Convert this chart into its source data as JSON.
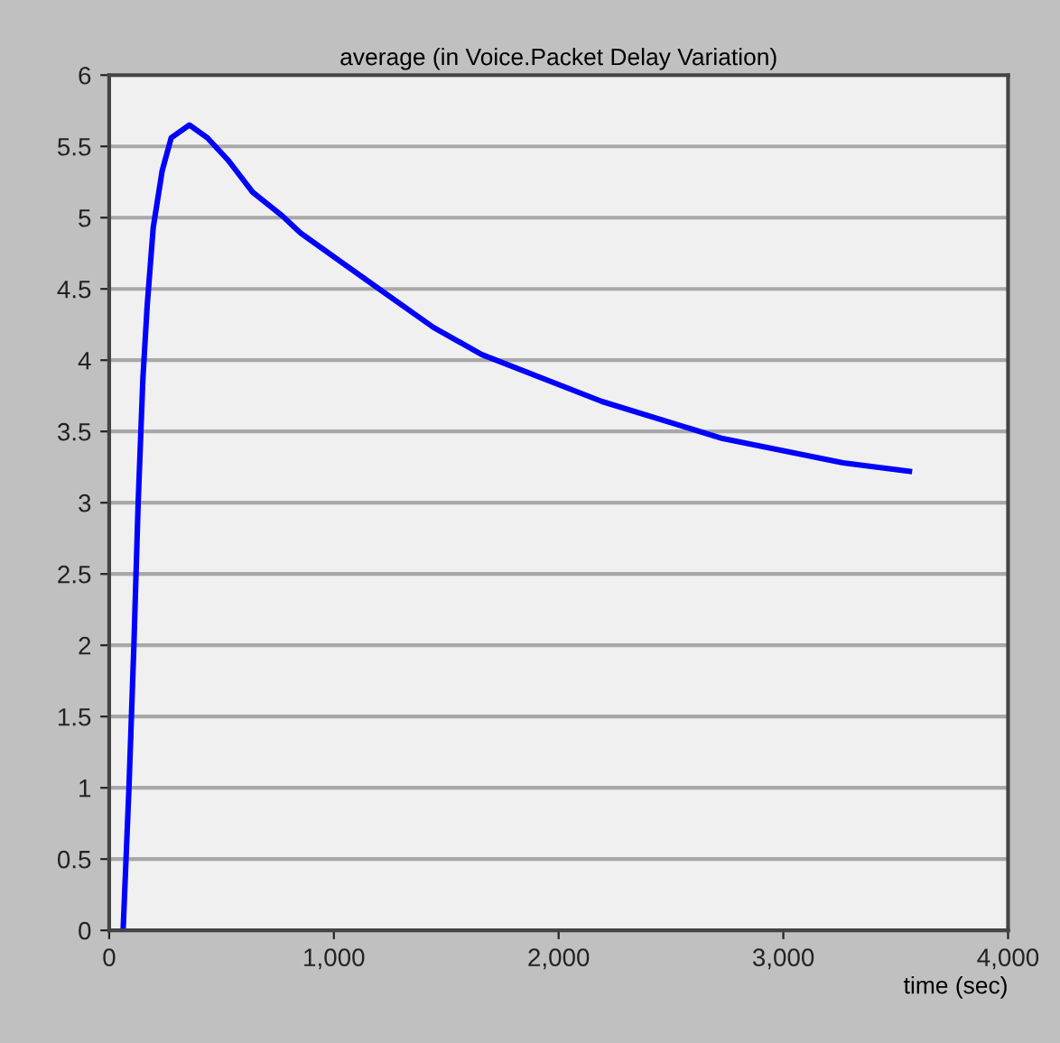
{
  "chart_data": {
    "type": "line",
    "title": "average (in Voice.Packet Delay Variation)",
    "xlabel": "time (sec)",
    "x": [
      62,
      88,
      110,
      129,
      150,
      169,
      196,
      236,
      276,
      357,
      437,
      531,
      638,
      772,
      853,
      1040,
      1228,
      1443,
      1657,
      2193,
      2730,
      3266,
      3561
    ],
    "series": [
      {
        "color": "#0000ff",
        "values": [
          0,
          1.0,
          2.0,
          3.0,
          3.87,
          4.38,
          4.93,
          5.33,
          5.56,
          5.65,
          5.56,
          5.4,
          5.18,
          5.01,
          4.89,
          4.68,
          4.47,
          4.23,
          4.04,
          3.71,
          3.45,
          3.28,
          3.22
        ]
      }
    ],
    "xlim": [
      0,
      4000
    ],
    "xticks": [
      0,
      {
        "value": 1000,
        "label": "1,000"
      },
      {
        "value": 2000,
        "label": "2,000"
      },
      {
        "value": 3000,
        "label": "3,000"
      },
      {
        "value": 4000,
        "label": "4,000"
      }
    ],
    "ylim": [
      0,
      6
    ],
    "yticks": [
      0,
      0.5,
      1,
      1.5,
      2,
      2.5,
      3,
      3.5,
      4,
      4.5,
      5,
      5.5,
      6
    ],
    "grid": "y",
    "line_style": "solid",
    "marker": "none"
  }
}
